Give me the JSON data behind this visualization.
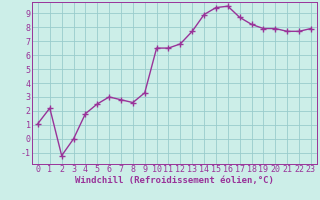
{
  "x": [
    0,
    1,
    2,
    3,
    4,
    5,
    6,
    7,
    8,
    9,
    10,
    11,
    12,
    13,
    14,
    15,
    16,
    17,
    18,
    19,
    20,
    21,
    22,
    23
  ],
  "y": [
    1.1,
    2.2,
    -1.2,
    0.0,
    1.8,
    2.5,
    3.0,
    2.8,
    2.6,
    3.3,
    6.5,
    6.5,
    6.8,
    7.7,
    8.9,
    9.4,
    9.5,
    8.7,
    8.2,
    7.9,
    7.9,
    7.7,
    7.7,
    7.9
  ],
  "xlabel": "Windchill (Refroidissement éolien,°C)",
  "xlim": [
    -0.5,
    23.5
  ],
  "ylim": [
    -1.8,
    9.8
  ],
  "yticks": [
    -1,
    0,
    1,
    2,
    3,
    4,
    5,
    6,
    7,
    8,
    9
  ],
  "xticks": [
    0,
    1,
    2,
    3,
    4,
    5,
    6,
    7,
    8,
    9,
    10,
    11,
    12,
    13,
    14,
    15,
    16,
    17,
    18,
    19,
    20,
    21,
    22,
    23
  ],
  "line_color": "#993399",
  "marker": "+",
  "background_color": "#cceee8",
  "grid_color": "#99cccc",
  "xlabel_fontsize": 6.5,
  "tick_fontsize": 6.0,
  "line_width": 1.0,
  "marker_size": 4
}
